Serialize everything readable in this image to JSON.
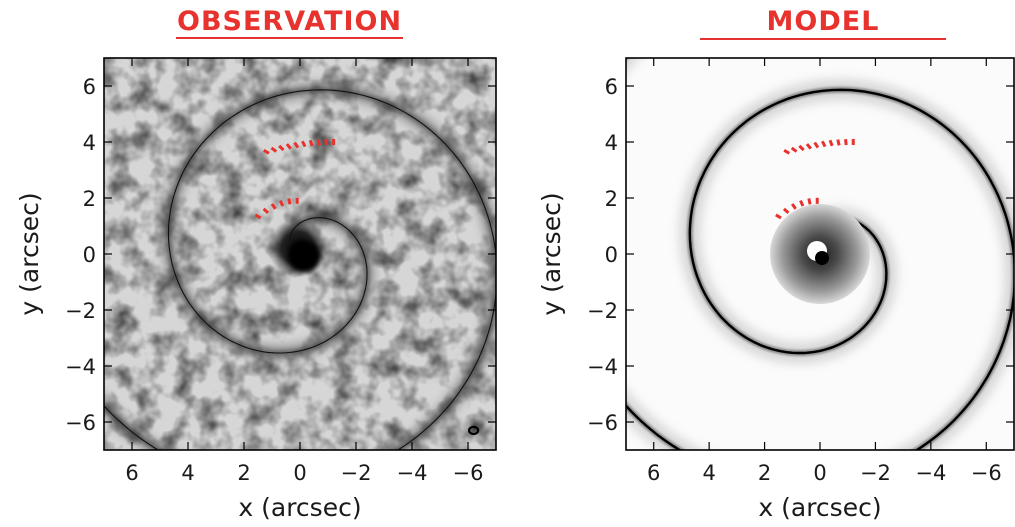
{
  "accent_color": "#e8322e",
  "chart_data": [
    {
      "type": "image",
      "panel": "observation",
      "title": "OBSERVATION",
      "xlabel": "x (arcsec)",
      "ylabel": "y (arcsec)",
      "xlim": [
        7,
        -7
      ],
      "ylim": [
        -7,
        7
      ],
      "xticks": [
        "6",
        "4",
        "2",
        "0",
        "−2",
        "−4",
        "−6"
      ],
      "yticks": [
        "6",
        "4",
        "2",
        "0",
        "−2",
        "−4",
        "−6"
      ],
      "xtick_values": [
        6,
        4,
        2,
        0,
        -2,
        -4,
        -6
      ],
      "ytick_values": [
        6,
        4,
        2,
        0,
        -2,
        -4,
        -6
      ],
      "colormap": "grayscale",
      "overlay": "spiral model curve (thin black line)",
      "marker_arcs": [
        {
          "color": "#e8322e",
          "style": "dotted",
          "x_range": [
            1.2,
            -1.2
          ],
          "y_approx": 4.0
        },
        {
          "color": "#e8322e",
          "style": "dotted",
          "x_range": [
            1.5,
            0.1
          ],
          "y_approx": 1.9
        }
      ]
    },
    {
      "type": "image",
      "panel": "model",
      "title": "MODEL",
      "xlabel": "x (arcsec)",
      "ylabel": "y (arcsec)",
      "xlim": [
        7,
        -7
      ],
      "ylim": [
        -7,
        7
      ],
      "xticks": [
        "6",
        "4",
        "2",
        "0",
        "−2",
        "−4",
        "−6"
      ],
      "yticks": [
        "6",
        "4",
        "2",
        "0",
        "−2",
        "−4",
        "−6"
      ],
      "xtick_values": [
        6,
        4,
        2,
        0,
        -2,
        -4,
        -6
      ],
      "ytick_values": [
        6,
        4,
        2,
        0,
        -2,
        -4,
        -6
      ],
      "colormap": "grayscale",
      "marker_arcs": [
        {
          "color": "#e8322e",
          "style": "dotted",
          "x_range": [
            1.2,
            -1.2
          ],
          "y_approx": 4.0
        },
        {
          "color": "#e8322e",
          "style": "dotted",
          "x_range": [
            1.5,
            0.1
          ],
          "y_approx": 1.9
        }
      ]
    }
  ]
}
